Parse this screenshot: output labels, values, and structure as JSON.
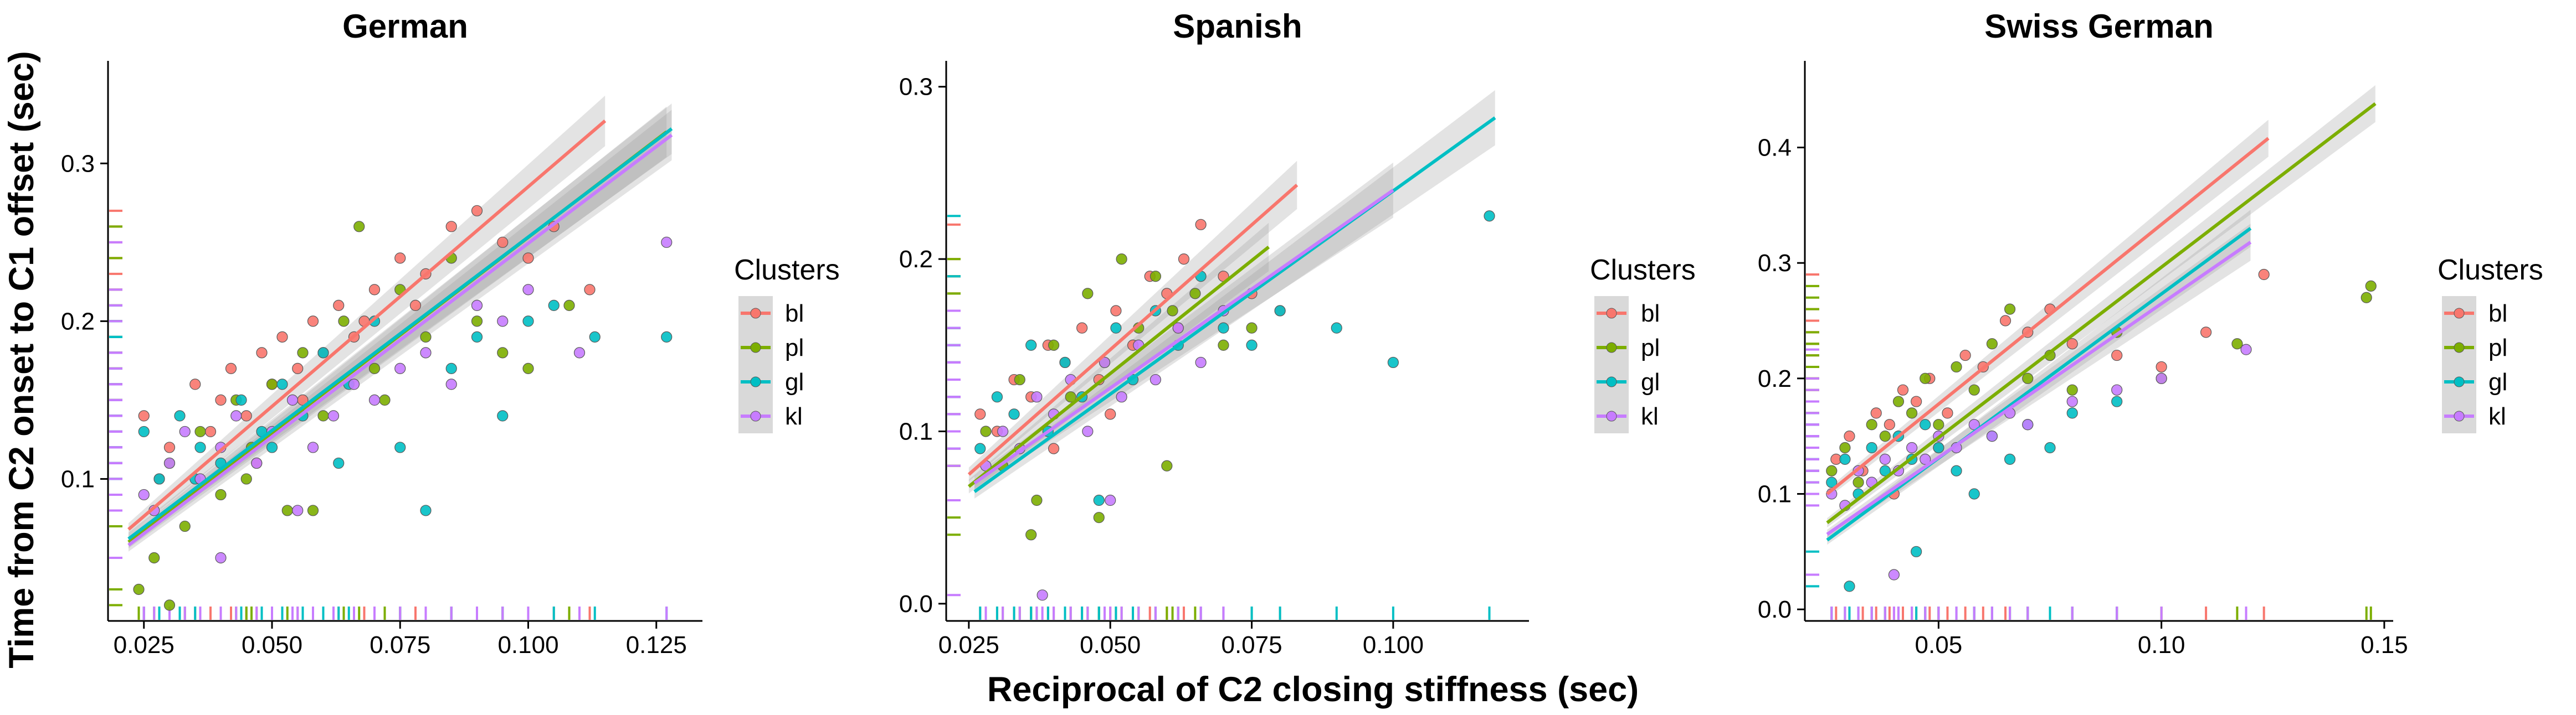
{
  "figure": {
    "xlabel": "Reciprocal of C2 closing stiffness (sec)",
    "ylabel": "Time from C2 onset to C1 offset (sec)",
    "legend_title": "Clusters"
  },
  "chart_data": [
    {
      "type": "scatter",
      "title": "German",
      "xlim": [
        0.018,
        0.134
      ],
      "ylim": [
        0.01,
        0.365
      ],
      "xticks": [
        0.025,
        0.05,
        0.075,
        0.1,
        0.125
      ],
      "xtick_labels": [
        "0.025",
        "0.050",
        "0.075",
        "0.100",
        "0.125"
      ],
      "yticks": [
        0.1,
        0.2,
        0.3
      ],
      "ytick_labels": [
        "0.1",
        "0.2",
        "0.3"
      ],
      "legend_position": "right",
      "grid": false,
      "series": [
        {
          "name": "bl",
          "color": "#F8766D",
          "fit": {
            "x": [
              0.022,
              0.115
            ],
            "y": [
              0.068,
              0.327
            ]
          },
          "fit_band": [
            0.004,
            0.016
          ],
          "x": [
            0.025,
            0.03,
            0.035,
            0.04,
            0.042,
            0.045,
            0.048,
            0.05,
            0.052,
            0.055,
            0.058,
            0.06,
            0.063,
            0.066,
            0.07,
            0.075,
            0.08,
            0.085,
            0.09,
            0.095,
            0.1,
            0.105,
            0.112,
            0.028,
            0.038,
            0.047,
            0.056,
            0.068,
            0.078
          ],
          "y": [
            0.14,
            0.12,
            0.16,
            0.15,
            0.17,
            0.14,
            0.18,
            0.16,
            0.19,
            0.17,
            0.2,
            0.18,
            0.21,
            0.19,
            0.22,
            0.24,
            0.23,
            0.26,
            0.27,
            0.25,
            0.24,
            0.26,
            0.22,
            0.1,
            0.13,
            0.11,
            0.15,
            0.2,
            0.21
          ]
        },
        {
          "name": "pl",
          "color": "#7CAE00",
          "fit": {
            "x": [
              0.022,
              0.127
            ],
            "y": [
              0.06,
              0.32
            ]
          },
          "fit_band": [
            0.004,
            0.016
          ],
          "x": [
            0.024,
            0.027,
            0.03,
            0.033,
            0.036,
            0.04,
            0.043,
            0.046,
            0.05,
            0.053,
            0.056,
            0.06,
            0.064,
            0.067,
            0.07,
            0.075,
            0.08,
            0.085,
            0.09,
            0.095,
            0.1,
            0.108,
            0.03,
            0.045,
            0.058,
            0.072
          ],
          "y": [
            0.03,
            0.05,
            0.02,
            0.07,
            0.13,
            0.09,
            0.15,
            0.12,
            0.16,
            0.08,
            0.18,
            0.14,
            0.2,
            0.26,
            0.17,
            0.22,
            0.19,
            0.24,
            0.2,
            0.18,
            0.17,
            0.21,
            0.11,
            0.1,
            0.08,
            0.15
          ]
        },
        {
          "name": "gl",
          "color": "#00BFC4",
          "fit": {
            "x": [
              0.022,
              0.128
            ],
            "y": [
              0.062,
              0.322
            ]
          },
          "fit_band": [
            0.004,
            0.016
          ],
          "x": [
            0.025,
            0.028,
            0.032,
            0.036,
            0.04,
            0.044,
            0.048,
            0.052,
            0.056,
            0.06,
            0.065,
            0.07,
            0.075,
            0.08,
            0.085,
            0.09,
            0.095,
            0.1,
            0.105,
            0.113,
            0.127,
            0.035,
            0.05,
            0.063
          ],
          "y": [
            0.13,
            0.1,
            0.14,
            0.12,
            0.11,
            0.15,
            0.13,
            0.16,
            0.14,
            0.18,
            0.16,
            0.2,
            0.12,
            0.08,
            0.17,
            0.19,
            0.14,
            0.2,
            0.21,
            0.19,
            0.19,
            0.1,
            0.12,
            0.11
          ]
        },
        {
          "name": "kl",
          "color": "#C77CFF",
          "fit": {
            "x": [
              0.022,
              0.128
            ],
            "y": [
              0.058,
              0.318
            ]
          },
          "fit_band": [
            0.004,
            0.016
          ],
          "x": [
            0.025,
            0.027,
            0.03,
            0.033,
            0.036,
            0.04,
            0.043,
            0.047,
            0.05,
            0.054,
            0.058,
            0.062,
            0.066,
            0.07,
            0.075,
            0.08,
            0.085,
            0.09,
            0.095,
            0.1,
            0.11,
            0.127,
            0.04,
            0.055
          ],
          "y": [
            0.09,
            0.08,
            0.11,
            0.13,
            0.1,
            0.12,
            0.14,
            0.11,
            0.13,
            0.15,
            0.12,
            0.14,
            0.16,
            0.15,
            0.17,
            0.18,
            0.16,
            0.21,
            0.2,
            0.22,
            0.18,
            0.25,
            0.05,
            0.08
          ]
        }
      ]
    },
    {
      "type": "scatter",
      "title": "Spanish",
      "xlim": [
        0.021,
        0.124
      ],
      "ylim": [
        -0.01,
        0.315
      ],
      "xticks": [
        0.025,
        0.05,
        0.075,
        0.1
      ],
      "xtick_labels": [
        "0.025",
        "0.050",
        "0.075",
        "0.100"
      ],
      "yticks": [
        0.0,
        0.1,
        0.2,
        0.3
      ],
      "ytick_labels": [
        "0.0",
        "0.1",
        "0.2",
        "0.3"
      ],
      "legend_position": "right",
      "grid": false,
      "series": [
        {
          "name": "bl",
          "color": "#F8766D",
          "fit": {
            "x": [
              0.025,
              0.083
            ],
            "y": [
              0.075,
              0.243
            ]
          },
          "fit_band": [
            0.004,
            0.014
          ],
          "x": [
            0.027,
            0.03,
            0.033,
            0.036,
            0.039,
            0.042,
            0.045,
            0.048,
            0.051,
            0.054,
            0.057,
            0.06,
            0.063,
            0.066,
            0.07,
            0.075,
            0.08,
            0.04,
            0.05,
            0.062
          ],
          "y": [
            0.11,
            0.1,
            0.13,
            0.12,
            0.15,
            0.14,
            0.16,
            0.13,
            0.17,
            0.15,
            0.19,
            0.18,
            0.2,
            0.22,
            0.19,
            0.18,
            0.17,
            0.09,
            0.11,
            0.16
          ]
        },
        {
          "name": "pl",
          "color": "#7CAE00",
          "fit": {
            "x": [
              0.025,
              0.078
            ],
            "y": [
              0.068,
              0.207
            ]
          },
          "fit_band": [
            0.004,
            0.014
          ],
          "x": [
            0.028,
            0.031,
            0.034,
            0.037,
            0.04,
            0.043,
            0.046,
            0.049,
            0.052,
            0.055,
            0.058,
            0.061,
            0.065,
            0.07,
            0.075,
            0.036,
            0.048,
            0.06
          ],
          "y": [
            0.1,
            0.08,
            0.13,
            0.06,
            0.15,
            0.12,
            0.18,
            0.14,
            0.2,
            0.16,
            0.19,
            0.17,
            0.18,
            0.15,
            0.16,
            0.04,
            0.05,
            0.08
          ]
        },
        {
          "name": "gl",
          "color": "#00BFC4",
          "fit": {
            "x": [
              0.026,
              0.118
            ],
            "y": [
              0.065,
              0.282
            ]
          },
          "fit_band": [
            0.004,
            0.016
          ],
          "x": [
            0.027,
            0.03,
            0.033,
            0.036,
            0.039,
            0.042,
            0.045,
            0.048,
            0.051,
            0.054,
            0.058,
            0.062,
            0.066,
            0.07,
            0.075,
            0.08,
            0.09,
            0.1,
            0.117
          ],
          "y": [
            0.09,
            0.12,
            0.11,
            0.15,
            0.1,
            0.14,
            0.12,
            0.06,
            0.16,
            0.13,
            0.17,
            0.15,
            0.19,
            0.16,
            0.15,
            0.17,
            0.16,
            0.14,
            0.225
          ]
        },
        {
          "name": "kl",
          "color": "#C77CFF",
          "fit": {
            "x": [
              0.026,
              0.1
            ],
            "y": [
              0.07,
              0.24
            ]
          },
          "fit_band": [
            0.004,
            0.016
          ],
          "x": [
            0.028,
            0.031,
            0.034,
            0.037,
            0.04,
            0.043,
            0.046,
            0.049,
            0.052,
            0.055,
            0.058,
            0.062,
            0.066,
            0.07,
            0.038,
            0.05
          ],
          "y": [
            0.08,
            0.1,
            0.09,
            0.12,
            0.11,
            0.13,
            0.1,
            0.14,
            0.12,
            0.15,
            0.13,
            0.16,
            0.14,
            0.17,
            0.005,
            0.06
          ]
        }
      ]
    },
    {
      "type": "scatter",
      "title": "Swiss German",
      "xlim": [
        0.02,
        0.152
      ],
      "ylim": [
        -0.01,
        0.475
      ],
      "xticks": [
        0.05,
        0.1,
        0.15
      ],
      "xtick_labels": [
        "0.05",
        "0.10",
        "0.15"
      ],
      "yticks": [
        0.0,
        0.1,
        0.2,
        0.3,
        0.4
      ],
      "ytick_labels": [
        "0.0",
        "0.1",
        "0.2",
        "0.3",
        "0.4"
      ],
      "legend_position": "right",
      "grid": false,
      "series": [
        {
          "name": "bl",
          "color": "#F8766D",
          "fit": {
            "x": [
              0.025,
              0.124
            ],
            "y": [
              0.1,
              0.408
            ]
          },
          "fit_band": [
            0.004,
            0.016
          ],
          "x": [
            0.027,
            0.03,
            0.033,
            0.036,
            0.039,
            0.042,
            0.045,
            0.048,
            0.052,
            0.056,
            0.06,
            0.065,
            0.07,
            0.075,
            0.08,
            0.09,
            0.1,
            0.11,
            0.123,
            0.04,
            0.05
          ],
          "y": [
            0.13,
            0.15,
            0.12,
            0.17,
            0.16,
            0.19,
            0.18,
            0.2,
            0.17,
            0.22,
            0.21,
            0.25,
            0.24,
            0.26,
            0.23,
            0.22,
            0.21,
            0.24,
            0.29,
            0.1,
            0.14
          ]
        },
        {
          "name": "pl",
          "color": "#7CAE00",
          "fit": {
            "x": [
              0.025,
              0.148
            ],
            "y": [
              0.075,
              0.438
            ]
          },
          "fit_band": [
            0.004,
            0.016
          ],
          "x": [
            0.026,
            0.029,
            0.032,
            0.035,
            0.038,
            0.041,
            0.044,
            0.047,
            0.05,
            0.054,
            0.058,
            0.062,
            0.066,
            0.07,
            0.075,
            0.08,
            0.09,
            0.1,
            0.117,
            0.146,
            0.147
          ],
          "y": [
            0.12,
            0.14,
            0.11,
            0.16,
            0.15,
            0.18,
            0.17,
            0.2,
            0.16,
            0.21,
            0.19,
            0.23,
            0.26,
            0.2,
            0.22,
            0.19,
            0.24,
            0.2,
            0.23,
            0.27,
            0.28
          ]
        },
        {
          "name": "gl",
          "color": "#00BFC4",
          "fit": {
            "x": [
              0.025,
              0.12
            ],
            "y": [
              0.06,
              0.33
            ]
          },
          "fit_band": [
            0.004,
            0.016
          ],
          "x": [
            0.026,
            0.029,
            0.032,
            0.035,
            0.038,
            0.041,
            0.044,
            0.047,
            0.05,
            0.054,
            0.058,
            0.062,
            0.066,
            0.07,
            0.075,
            0.08,
            0.09,
            0.03,
            0.045
          ],
          "y": [
            0.11,
            0.13,
            0.1,
            0.14,
            0.12,
            0.15,
            0.13,
            0.16,
            0.14,
            0.12,
            0.1,
            0.15,
            0.13,
            0.16,
            0.14,
            0.17,
            0.18,
            0.02,
            0.05
          ]
        },
        {
          "name": "kl",
          "color": "#C77CFF",
          "fit": {
            "x": [
              0.025,
              0.12
            ],
            "y": [
              0.065,
              0.318
            ]
          },
          "fit_band": [
            0.004,
            0.016
          ],
          "x": [
            0.026,
            0.029,
            0.032,
            0.035,
            0.038,
            0.041,
            0.044,
            0.047,
            0.05,
            0.054,
            0.058,
            0.062,
            0.066,
            0.07,
            0.08,
            0.09,
            0.1,
            0.119,
            0.04
          ],
          "y": [
            0.1,
            0.09,
            0.12,
            0.11,
            0.13,
            0.12,
            0.14,
            0.13,
            0.15,
            0.14,
            0.16,
            0.15,
            0.17,
            0.16,
            0.18,
            0.19,
            0.2,
            0.225,
            0.03
          ]
        }
      ]
    }
  ]
}
